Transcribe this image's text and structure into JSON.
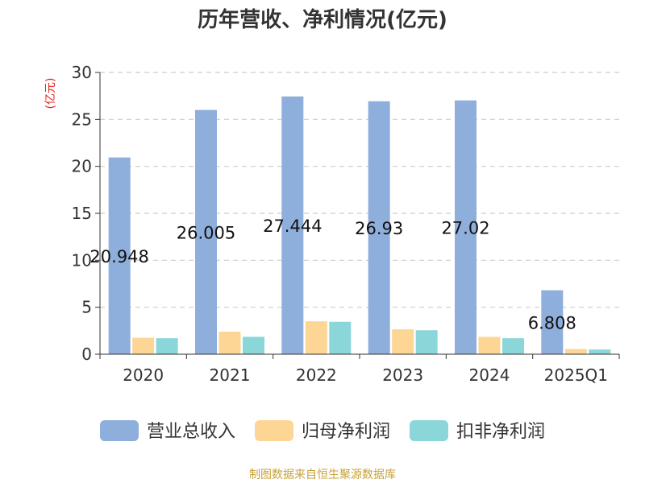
{
  "chart_data": {
    "type": "bar",
    "title": "历年营收、净利情况(亿元)",
    "ylabel": "(亿元)",
    "ylim": [
      0,
      30
    ],
    "yticks": [
      0,
      5,
      10,
      15,
      20,
      25,
      30
    ],
    "grid": true,
    "legend_position": "bottom",
    "categories": [
      "2020",
      "2021",
      "2022",
      "2023",
      "2024",
      "2025Q1"
    ],
    "series": [
      {
        "name": "营业总收入",
        "color": "#8eaedb",
        "values": [
          20.948,
          26.005,
          27.444,
          26.93,
          27.02,
          6.808
        ],
        "labels": [
          "20.948",
          "26.005",
          "27.444",
          "26.93",
          "27.02",
          "6.808"
        ]
      },
      {
        "name": "归母净利润",
        "color": "#fdd696",
        "values": [
          1.75,
          2.4,
          3.5,
          2.65,
          1.85,
          0.55
        ]
      },
      {
        "name": "扣非净利润",
        "color": "#8ad6d8",
        "values": [
          1.7,
          1.85,
          3.45,
          2.55,
          1.7,
          0.5
        ]
      }
    ]
  },
  "source_text": "制图数据来自恒生聚源数据库",
  "colors": {
    "unit": "#e8201a",
    "source": "#c8a23a",
    "grid": "#cccccc",
    "axis": "#333333"
  }
}
